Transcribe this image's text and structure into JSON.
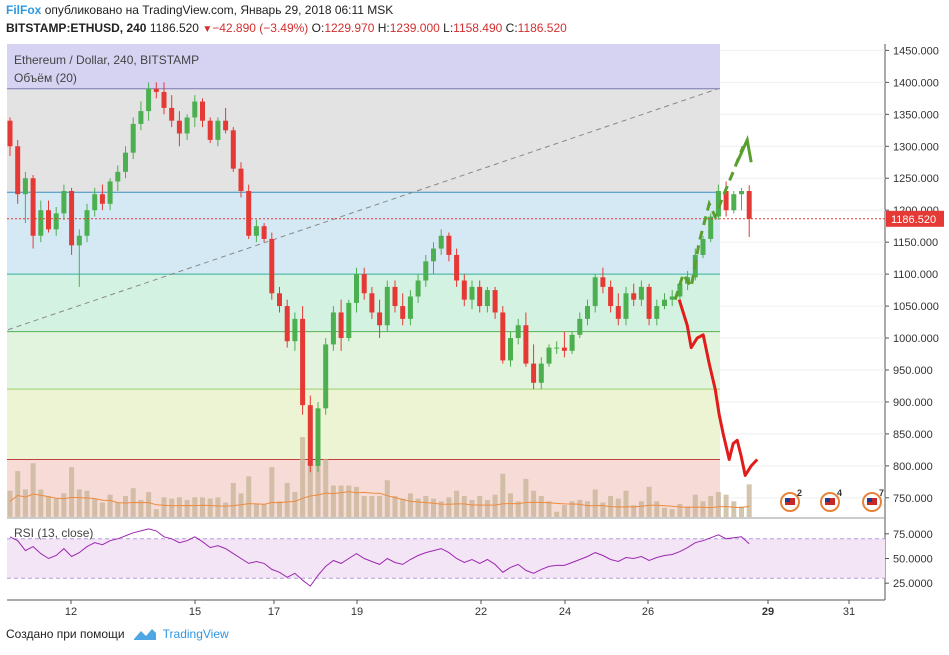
{
  "header": {
    "brand": "FilFox",
    "published": "опубликовано на TradingView.com, Январь 29, 2018 06:11 MSK",
    "symbol": "BITSTAMP:ETHUSD, 240",
    "last": "1186.520",
    "change": "−42.890 (−3.49%)",
    "o_label": "O:",
    "o_value": "1229.970",
    "h_label": "H:",
    "h_value": "1239.000",
    "l_label": "L:",
    "l_value": "1158.490",
    "c_label": "C:",
    "c_value": "1186.520"
  },
  "footer": {
    "created_by": "Создано при помощи",
    "tv_name": "TradingView"
  },
  "colors": {
    "up": "#4caf50",
    "down": "#e53935",
    "volume": "#c9b79a",
    "rsi": "#9c27b0",
    "accent": "#2f97e0"
  },
  "chart_data": [
    {
      "type": "candlestick",
      "title": "Ethereum / Dollar, 240, BITSTAMP",
      "subtitle": "Объём (20)",
      "x_ticks": [
        "12",
        "15",
        "17",
        "19",
        "22",
        "24",
        "26",
        "29",
        "31"
      ],
      "y_ticks": [
        "1450.000",
        "1400.000",
        "1350.000",
        "1300.000",
        "1250.000",
        "1200.000",
        "1150.000",
        "1100.000",
        "1050.000",
        "1000.000",
        "950.000",
        "900.000",
        "850.000",
        "800.000",
        "750.000"
      ],
      "ylim": [
        720,
        1460
      ],
      "last_price_label": "1186.520",
      "fib_levels": [
        1390,
        1228,
        1100,
        1010,
        920,
        810
      ],
      "candles": [
        [
          1340,
          1345,
          1285,
          1300
        ],
        [
          1300,
          1310,
          1210,
          1225
        ],
        [
          1225,
          1260,
          1180,
          1250
        ],
        [
          1250,
          1255,
          1140,
          1160
        ],
        [
          1160,
          1215,
          1150,
          1200
        ],
        [
          1200,
          1215,
          1165,
          1170
        ],
        [
          1170,
          1205,
          1160,
          1195
        ],
        [
          1195,
          1240,
          1185,
          1230
        ],
        [
          1230,
          1235,
          1130,
          1145
        ],
        [
          1145,
          1170,
          1080,
          1160
        ],
        [
          1160,
          1210,
          1150,
          1200
        ],
        [
          1200,
          1235,
          1190,
          1225
        ],
        [
          1225,
          1240,
          1200,
          1210
        ],
        [
          1210,
          1250,
          1200,
          1245
        ],
        [
          1245,
          1270,
          1230,
          1260
        ],
        [
          1260,
          1300,
          1250,
          1290
        ],
        [
          1290,
          1345,
          1280,
          1335
        ],
        [
          1335,
          1370,
          1325,
          1355
        ],
        [
          1355,
          1400,
          1340,
          1390
        ],
        [
          1390,
          1400,
          1375,
          1385
        ],
        [
          1385,
          1400,
          1350,
          1360
        ],
        [
          1360,
          1380,
          1330,
          1340
        ],
        [
          1340,
          1355,
          1300,
          1320
        ],
        [
          1320,
          1350,
          1310,
          1345
        ],
        [
          1345,
          1380,
          1330,
          1370
        ],
        [
          1370,
          1375,
          1330,
          1340
        ],
        [
          1340,
          1345,
          1305,
          1310
        ],
        [
          1310,
          1345,
          1300,
          1340
        ],
        [
          1340,
          1360,
          1320,
          1325
        ],
        [
          1325,
          1330,
          1260,
          1265
        ],
        [
          1265,
          1275,
          1220,
          1230
        ],
        [
          1230,
          1240,
          1155,
          1160
        ],
        [
          1160,
          1185,
          1150,
          1175
        ],
        [
          1175,
          1180,
          1150,
          1155
        ],
        [
          1155,
          1165,
          1060,
          1070
        ],
        [
          1070,
          1080,
          1040,
          1050
        ],
        [
          1050,
          1060,
          985,
          995
        ],
        [
          995,
          1040,
          980,
          1030
        ],
        [
          1030,
          1050,
          880,
          895
        ],
        [
          895,
          910,
          790,
          800
        ],
        [
          800,
          900,
          790,
          890
        ],
        [
          890,
          1000,
          880,
          990
        ],
        [
          990,
          1050,
          980,
          1040
        ],
        [
          1040,
          1060,
          980,
          1000
        ],
        [
          1000,
          1060,
          995,
          1055
        ],
        [
          1055,
          1110,
          1040,
          1100
        ],
        [
          1100,
          1110,
          1060,
          1070
        ],
        [
          1070,
          1080,
          1030,
          1040
        ],
        [
          1040,
          1060,
          1000,
          1020
        ],
        [
          1020,
          1090,
          1010,
          1080
        ],
        [
          1080,
          1090,
          1040,
          1050
        ],
        [
          1050,
          1070,
          1020,
          1030
        ],
        [
          1030,
          1075,
          1020,
          1065
        ],
        [
          1065,
          1100,
          1055,
          1090
        ],
        [
          1090,
          1130,
          1080,
          1120
        ],
        [
          1120,
          1150,
          1100,
          1140
        ],
        [
          1140,
          1170,
          1130,
          1160
        ],
        [
          1160,
          1165,
          1120,
          1130
        ],
        [
          1130,
          1140,
          1080,
          1090
        ],
        [
          1090,
          1100,
          1050,
          1060
        ],
        [
          1060,
          1090,
          1045,
          1080
        ],
        [
          1080,
          1090,
          1040,
          1050
        ],
        [
          1050,
          1080,
          1040,
          1075
        ],
        [
          1075,
          1080,
          1030,
          1040
        ],
        [
          1040,
          1050,
          960,
          965
        ],
        [
          965,
          1010,
          955,
          1000
        ],
        [
          1000,
          1030,
          990,
          1020
        ],
        [
          1020,
          1040,
          955,
          960
        ],
        [
          960,
          990,
          920,
          930
        ],
        [
          930,
          970,
          920,
          960
        ],
        [
          960,
          990,
          955,
          985
        ],
        [
          985,
          995,
          975,
          985
        ],
        [
          985,
          1010,
          970,
          980
        ],
        [
          980,
          1010,
          975,
          1005
        ],
        [
          1005,
          1040,
          1000,
          1030
        ],
        [
          1030,
          1060,
          1020,
          1050
        ],
        [
          1050,
          1100,
          1040,
          1095
        ],
        [
          1095,
          1110,
          1070,
          1080
        ],
        [
          1080,
          1090,
          1040,
          1050
        ],
        [
          1050,
          1070,
          1020,
          1030
        ],
        [
          1030,
          1080,
          1020,
          1070
        ],
        [
          1070,
          1085,
          1050,
          1060
        ],
        [
          1060,
          1090,
          1050,
          1080
        ],
        [
          1080,
          1085,
          1020,
          1030
        ],
        [
          1030,
          1060,
          1020,
          1050
        ],
        [
          1050,
          1070,
          1045,
          1060
        ],
        [
          1060,
          1075,
          1050,
          1065
        ],
        [
          1065,
          1090,
          1060,
          1085
        ],
        [
          1085,
          1105,
          1075,
          1095
        ],
        [
          1095,
          1140,
          1090,
          1130
        ],
        [
          1130,
          1160,
          1125,
          1155
        ],
        [
          1155,
          1195,
          1150,
          1190
        ],
        [
          1190,
          1240,
          1185,
          1230
        ],
        [
          1230,
          1245,
          1190,
          1200
        ],
        [
          1200,
          1230,
          1195,
          1225
        ],
        [
          1225,
          1235,
          1200,
          1230
        ],
        [
          1230,
          1239,
          1158,
          1186.52
        ]
      ],
      "volume_label": "Объём (20)",
      "rsi": {
        "label": "RSI (13, close)",
        "ticks": [
          "75.0000",
          "50.0000",
          "25.0000"
        ],
        "ylim": [
          10,
          90
        ],
        "values": [
          72,
          68,
          58,
          62,
          55,
          50,
          53,
          60,
          52,
          56,
          62,
          66,
          64,
          68,
          70,
          73,
          76,
          78,
          80,
          78,
          72,
          70,
          66,
          68,
          72,
          67,
          61,
          63,
          60,
          55,
          50,
          45,
          47,
          45,
          39,
          36,
          31,
          35,
          28,
          22,
          33,
          42,
          48,
          45,
          50,
          55,
          50,
          47,
          44,
          50,
          46,
          44,
          49,
          53,
          56,
          58,
          60,
          56,
          50,
          46,
          49,
          45,
          49,
          44,
          36,
          41,
          44,
          38,
          35,
          39,
          42,
          43,
          43,
          46,
          49,
          52,
          56,
          53,
          49,
          47,
          51,
          50,
          52,
          48,
          51,
          53,
          54,
          57,
          61,
          66,
          68,
          71,
          74,
          70,
          71,
          72,
          65
        ]
      },
      "annotations": {
        "event_flags": [
          "2",
          "4",
          "7"
        ]
      }
    }
  ]
}
